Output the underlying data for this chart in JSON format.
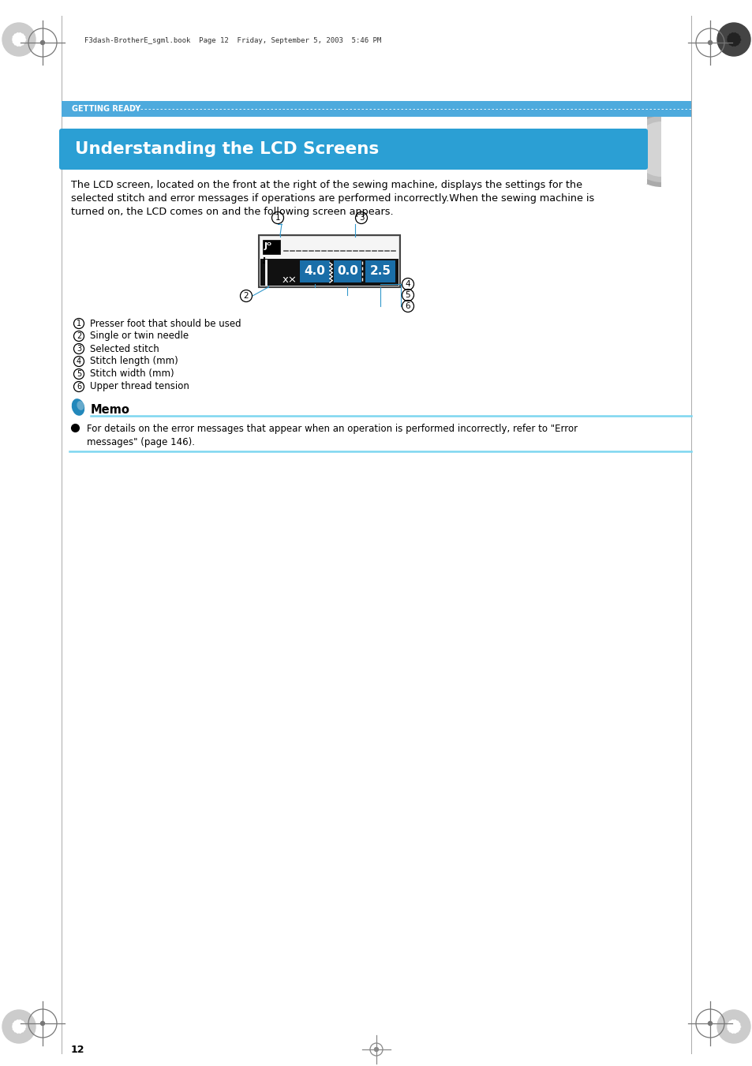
{
  "page_title": "Understanding the LCD Screens",
  "header_text": "GETTING READY",
  "file_info": "F3dash-BrotherE_sgml.book  Page 12  Friday, September 5, 2003  5:46 PM",
  "body_line1": "The LCD screen, located on the front at the right of the sewing machine, displays the settings for the",
  "body_line2": "selected stitch and error messages if operations are performed incorrectly.When the sewing machine is",
  "body_line3": "turned on, the LCD comes on and the following screen appears.",
  "labels": [
    {
      "num": "1",
      "text": "Presser foot that should be used"
    },
    {
      "num": "2",
      "text": "Single or twin needle"
    },
    {
      "num": "3",
      "text": "Selected stitch"
    },
    {
      "num": "4",
      "text": "Stitch length (mm)"
    },
    {
      "num": "5",
      "text": "Stitch width (mm)"
    },
    {
      "num": "6",
      "text": "Upper thread tension"
    }
  ],
  "memo_title": "Memo",
  "memo_line1": "For details on the error messages that appear when an operation is performed incorrectly, refer to \"Error",
  "memo_line2": "messages\" (page 146).",
  "page_number": "12",
  "header_bar_color": "#4daadd",
  "title_bg_color": "#2b9fd4",
  "gray_arc_color": "#b0b0b0",
  "cyan_line_color": "#7dd6f0",
  "callout_line_color": "#3399cc",
  "lcd_top_bg": "#f0f0f0",
  "lcd_bottom_bg": "#111111",
  "lcd_num_bg": "#1a6ea8",
  "lcd_border": "#555555"
}
